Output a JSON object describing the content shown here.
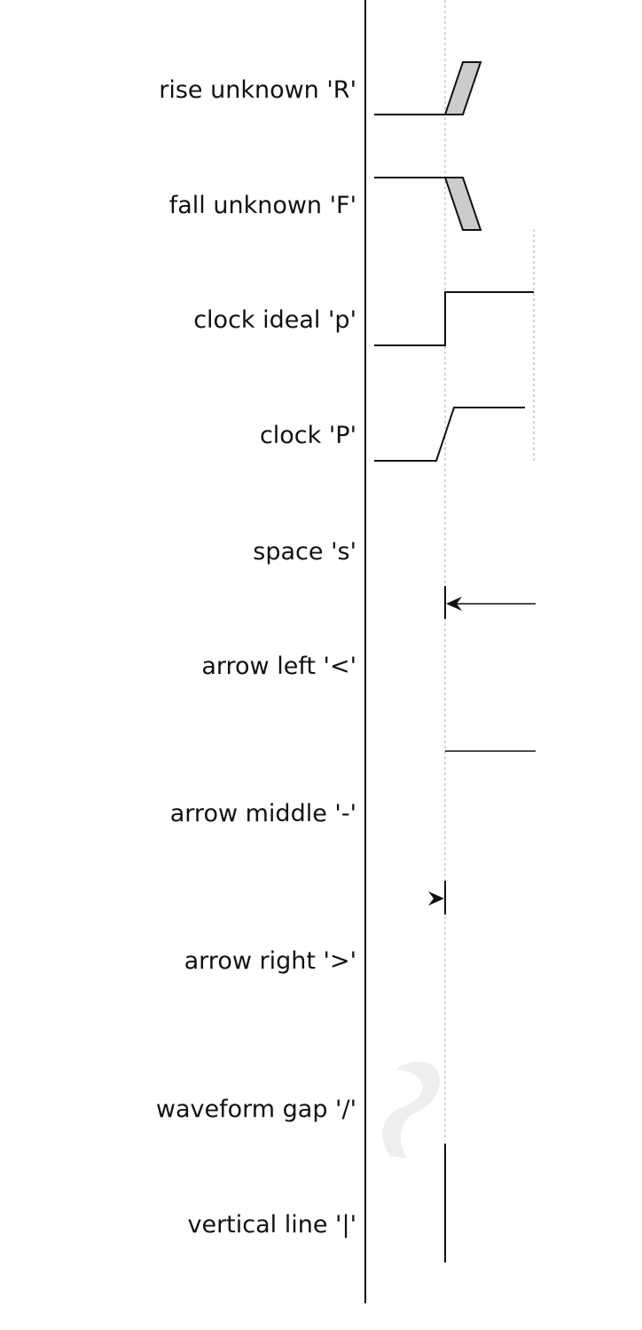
{
  "legend": {
    "rows": [
      {
        "id": "rise-unknown",
        "label": "rise unknown 'R'"
      },
      {
        "id": "fall-unknown",
        "label": "fall unknown 'F'"
      },
      {
        "id": "clock-ideal",
        "label": "clock ideal 'p'"
      },
      {
        "id": "clock",
        "label": "clock 'P'"
      },
      {
        "id": "space",
        "label": "space 's'"
      },
      {
        "id": "arrow-left",
        "label": "arrow left '<'"
      },
      {
        "id": "arrow-middle",
        "label": "arrow middle '-'"
      },
      {
        "id": "arrow-right",
        "label": "arrow right '>'"
      },
      {
        "id": "waveform-gap",
        "label": "waveform gap '/'"
      },
      {
        "id": "vertical-line",
        "label": "vertical line '|'"
      }
    ]
  },
  "colors": {
    "line": "#111111",
    "unknown_fill": "#cccccc",
    "guide": "#aaaaaa",
    "gap": "#eeeeee"
  }
}
